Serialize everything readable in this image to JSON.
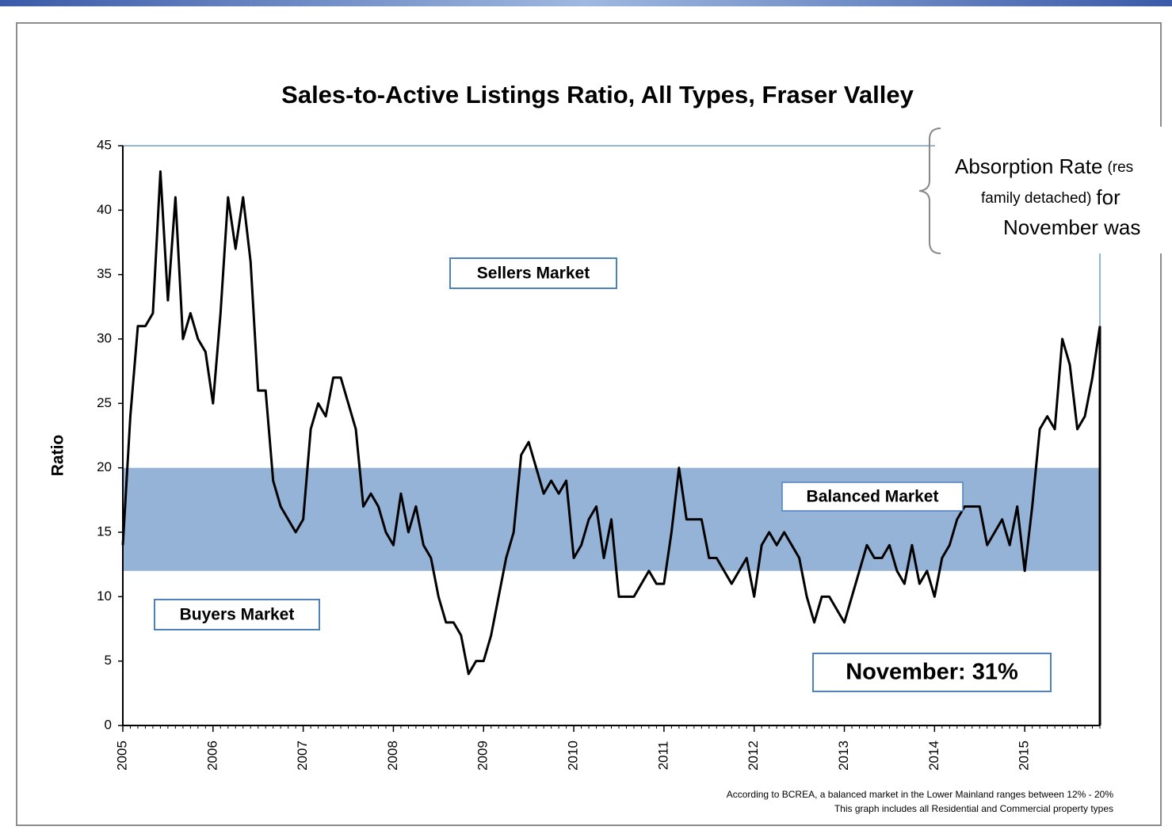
{
  "chart_data": {
    "type": "line",
    "title": "Sales-to-Active Listings Ratio, All Types, Fraser Valley",
    "y_label": "Ratio",
    "categories": [
      "2005",
      null,
      null,
      null,
      null,
      null,
      null,
      null,
      null,
      null,
      null,
      null,
      "2006",
      null,
      null,
      null,
      null,
      null,
      null,
      null,
      null,
      null,
      null,
      null,
      "2007",
      null,
      null,
      null,
      null,
      null,
      null,
      null,
      null,
      null,
      null,
      null,
      "2008",
      null,
      null,
      null,
      null,
      null,
      null,
      null,
      null,
      null,
      null,
      null,
      "2009",
      null,
      null,
      null,
      null,
      null,
      null,
      null,
      null,
      null,
      null,
      null,
      "2010",
      null,
      null,
      null,
      null,
      null,
      null,
      null,
      null,
      null,
      null,
      null,
      "2011",
      null,
      null,
      null,
      null,
      null,
      null,
      null,
      null,
      null,
      null,
      null,
      "2012",
      null,
      null,
      null,
      null,
      null,
      null,
      null,
      null,
      null,
      null,
      null,
      "2013",
      null,
      null,
      null,
      null,
      null,
      null,
      null,
      null,
      null,
      null,
      null,
      "2014",
      null,
      null,
      null,
      null,
      null,
      null,
      null,
      null,
      null,
      null,
      null,
      "2015",
      null,
      null,
      null,
      null,
      null,
      null,
      null,
      null,
      null,
      null
    ],
    "series": [
      {
        "name": "Ratio",
        "color": "#000000",
        "values": [
          14,
          24,
          31,
          31,
          32,
          43,
          33,
          41,
          30,
          32,
          30,
          29,
          25,
          32,
          41,
          37,
          41,
          36,
          26,
          26,
          19,
          17,
          16,
          15,
          16,
          23,
          25,
          24,
          27,
          27,
          25,
          23,
          17,
          18,
          17,
          15,
          14,
          18,
          15,
          17,
          14,
          13,
          10,
          8,
          8,
          7,
          4,
          5,
          5,
          7,
          10,
          13,
          15,
          21,
          22,
          20,
          18,
          19,
          18,
          19,
          13,
          14,
          16,
          17,
          13,
          16,
          10,
          10,
          10,
          11,
          12,
          11,
          11,
          15,
          20,
          16,
          16,
          16,
          13,
          13,
          12,
          11,
          12,
          13,
          10,
          14,
          15,
          14,
          15,
          14,
          13,
          10,
          8,
          10,
          10,
          9,
          8,
          10,
          12,
          14,
          13,
          13,
          14,
          12,
          11,
          14,
          11,
          12,
          10,
          13,
          14,
          16,
          17,
          17,
          17,
          14,
          15,
          16,
          14,
          17,
          12,
          17,
          23,
          24,
          23,
          30,
          28,
          23,
          24,
          27,
          31
        ]
      }
    ],
    "band": {
      "from": 12,
      "to": 20,
      "color": "#95b3d7"
    },
    "ylim": [
      0,
      45
    ],
    "yticks": [
      0,
      5,
      10,
      15,
      20,
      25,
      30,
      35,
      40,
      45
    ],
    "annotations": {
      "sellers": "Sellers Market",
      "buyers": "Buyers Market",
      "balanced": "Balanced Market",
      "current": "November: 31%"
    },
    "footnotes": [
      "According to BCREA, a balanced market in the Lower Mainland ranges between 12% - 20%",
      "This graph includes all Residential and Commercial property types"
    ],
    "callout": [
      [
        "Absorption Rate",
        "(res"
      ],
      [
        "family detached)",
        "for"
      ],
      [
        "November was"
      ]
    ]
  }
}
